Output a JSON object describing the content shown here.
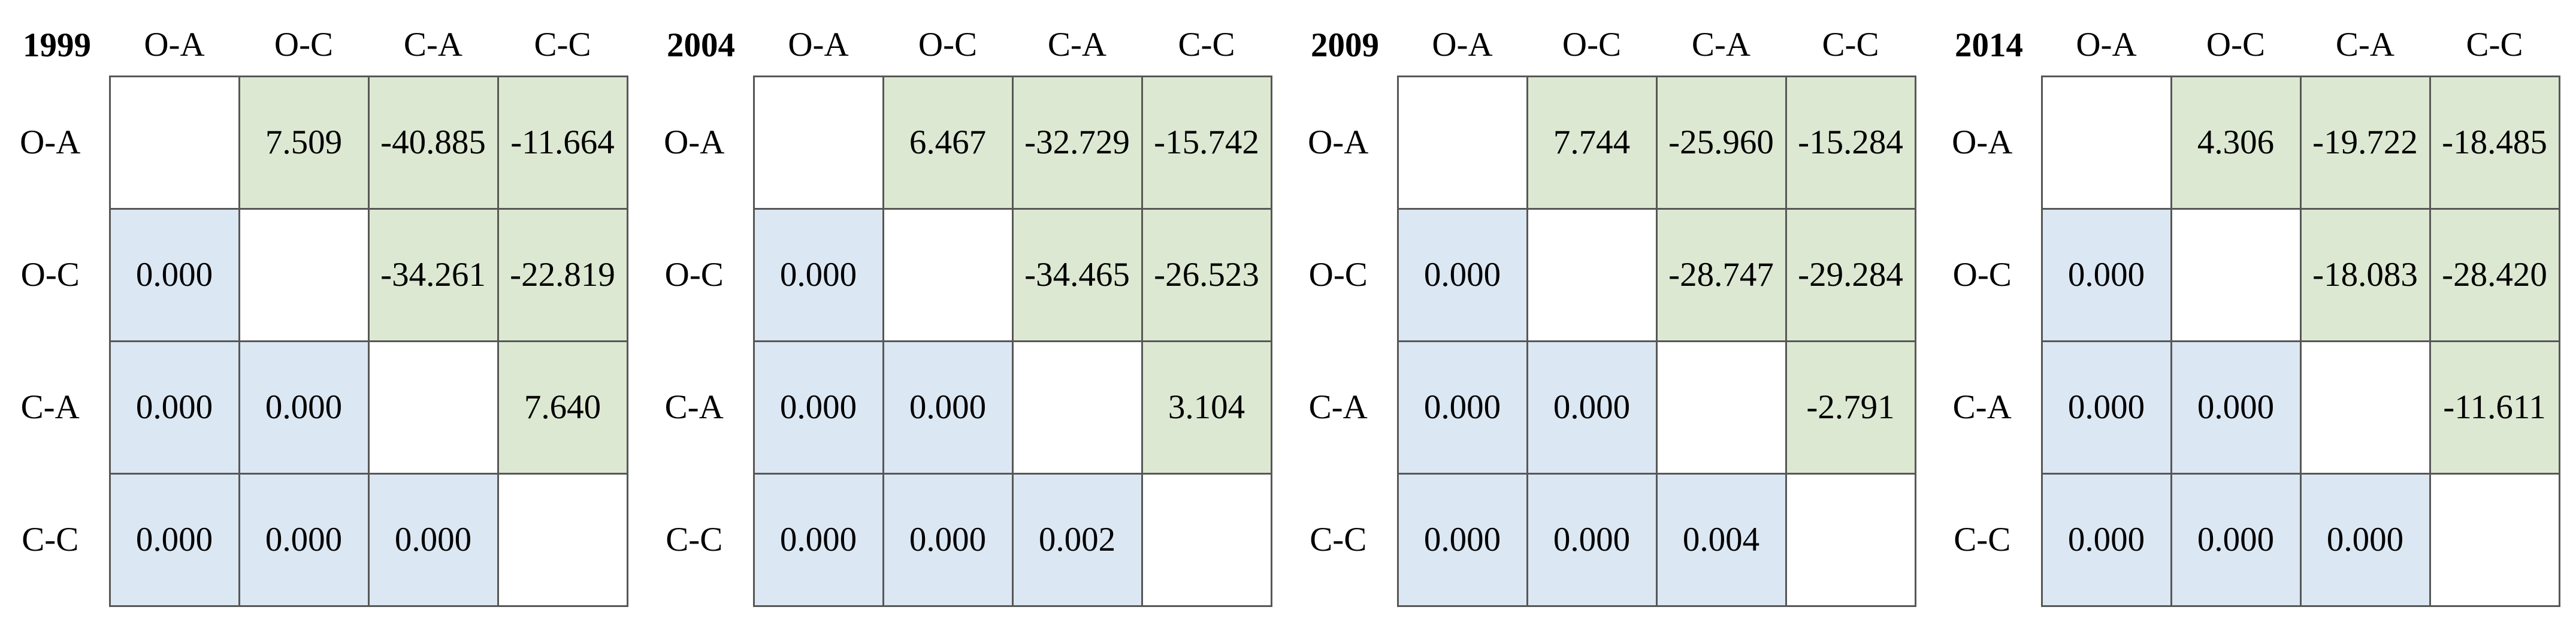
{
  "colors": {
    "upper_triangle_bg": "#dde8d2",
    "lower_triangle_bg": "#dbe7f3",
    "diagonal_bg": "#ffffff",
    "grid_border": "#575757",
    "text": "#000000",
    "page_bg": "#ffffff"
  },
  "matrices": [
    {
      "year": "1999",
      "col_headers": [
        "O-A",
        "O-C",
        "C-A",
        "C-C"
      ],
      "row_headers": [
        "O-A",
        "O-C",
        "C-A",
        "C-C"
      ],
      "rows": [
        [
          "",
          "7.509",
          "-40.885",
          "-11.664"
        ],
        [
          "0.000",
          "",
          "-34.261",
          "-22.819"
        ],
        [
          "0.000",
          "0.000",
          "",
          "7.640"
        ],
        [
          "0.000",
          "0.000",
          "0.000",
          ""
        ]
      ]
    },
    {
      "year": "2004",
      "col_headers": [
        "O-A",
        "O-C",
        "C-A",
        "C-C"
      ],
      "row_headers": [
        "O-A",
        "O-C",
        "C-A",
        "C-C"
      ],
      "rows": [
        [
          "",
          "6.467",
          "-32.729",
          "-15.742"
        ],
        [
          "0.000",
          "",
          "-34.465",
          "-26.523"
        ],
        [
          "0.000",
          "0.000",
          "",
          "3.104"
        ],
        [
          "0.000",
          "0.000",
          "0.002",
          ""
        ]
      ]
    },
    {
      "year": "2009",
      "col_headers": [
        "O-A",
        "O-C",
        "C-A",
        "C-C"
      ],
      "row_headers": [
        "O-A",
        "O-C",
        "C-A",
        "C-C"
      ],
      "rows": [
        [
          "",
          "7.744",
          "-25.960",
          "-15.284"
        ],
        [
          "0.000",
          "",
          "-28.747",
          "-29.284"
        ],
        [
          "0.000",
          "0.000",
          "",
          "-2.791"
        ],
        [
          "0.000",
          "0.000",
          "0.004",
          ""
        ]
      ]
    },
    {
      "year": "2014",
      "col_headers": [
        "O-A",
        "O-C",
        "C-A",
        "C-C"
      ],
      "row_headers": [
        "O-A",
        "O-C",
        "C-A",
        "C-C"
      ],
      "rows": [
        [
          "",
          "4.306",
          "-19.722",
          "-18.485"
        ],
        [
          "0.000",
          "",
          "-18.083",
          "-28.420"
        ],
        [
          "0.000",
          "0.000",
          "",
          "-11.611"
        ],
        [
          "0.000",
          "0.000",
          "0.000",
          ""
        ]
      ]
    }
  ],
  "chart_data": [
    {
      "type": "heatmap",
      "title": "1999",
      "columns": [
        "O-A",
        "O-C",
        "C-A",
        "C-C"
      ],
      "rows": [
        "O-A",
        "O-C",
        "C-A",
        "C-C"
      ],
      "values": [
        [
          null,
          7.509,
          -40.885,
          -11.664
        ],
        [
          0.0,
          null,
          -34.261,
          -22.819
        ],
        [
          0.0,
          0.0,
          null,
          7.64
        ],
        [
          0.0,
          0.0,
          0.0,
          null
        ]
      ],
      "layout": {
        "upper_triangle_color": "#dde8d2",
        "lower_triangle_color": "#dbe7f3",
        "diagonal": "blank",
        "grid": true
      }
    },
    {
      "type": "heatmap",
      "title": "2004",
      "columns": [
        "O-A",
        "O-C",
        "C-A",
        "C-C"
      ],
      "rows": [
        "O-A",
        "O-C",
        "C-A",
        "C-C"
      ],
      "values": [
        [
          null,
          6.467,
          -32.729,
          -15.742
        ],
        [
          0.0,
          null,
          -34.465,
          -26.523
        ],
        [
          0.0,
          0.0,
          null,
          3.104
        ],
        [
          0.0,
          0.0,
          0.002,
          null
        ]
      ],
      "layout": {
        "upper_triangle_color": "#dde8d2",
        "lower_triangle_color": "#dbe7f3",
        "diagonal": "blank",
        "grid": true
      }
    },
    {
      "type": "heatmap",
      "title": "2009",
      "columns": [
        "O-A",
        "O-C",
        "C-A",
        "C-C"
      ],
      "rows": [
        "O-A",
        "O-C",
        "C-A",
        "C-C"
      ],
      "values": [
        [
          null,
          7.744,
          -25.96,
          -15.284
        ],
        [
          0.0,
          null,
          -28.747,
          -29.284
        ],
        [
          0.0,
          0.0,
          null,
          -2.791
        ],
        [
          0.0,
          0.0,
          0.004,
          null
        ]
      ],
      "layout": {
        "upper_triangle_color": "#dde8d2",
        "lower_triangle_color": "#dbe7f3",
        "diagonal": "blank",
        "grid": true
      }
    },
    {
      "type": "heatmap",
      "title": "2014",
      "columns": [
        "O-A",
        "O-C",
        "C-A",
        "C-C"
      ],
      "rows": [
        "O-A",
        "O-C",
        "C-A",
        "C-C"
      ],
      "values": [
        [
          null,
          4.306,
          -19.722,
          -18.485
        ],
        [
          0.0,
          null,
          -18.083,
          -28.42
        ],
        [
          0.0,
          0.0,
          null,
          -11.611
        ],
        [
          0.0,
          0.0,
          0.0,
          null
        ]
      ],
      "layout": {
        "upper_triangle_color": "#dde8d2",
        "lower_triangle_color": "#dbe7f3",
        "diagonal": "blank",
        "grid": true
      }
    }
  ]
}
